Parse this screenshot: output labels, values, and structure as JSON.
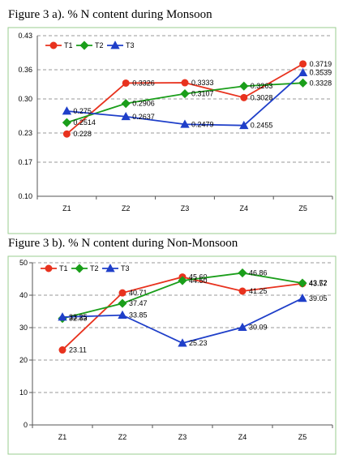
{
  "chart_data": [
    {
      "type": "line",
      "title": "Figure 3 a). % N content during Monsoon",
      "categories": [
        "Z1",
        "Z2",
        "Z3",
        "Z4",
        "Z5"
      ],
      "y_ticks": [
        "0.10",
        "0.17",
        "0.23",
        "0.30",
        "0.36",
        "0.43"
      ],
      "ylim": [
        0.1,
        0.43
      ],
      "grid": true,
      "legend_position": "top-left",
      "series": [
        {
          "name": "T1",
          "color": "#e8321e",
          "marker": "circle",
          "values": [
            0.228,
            0.3326,
            0.3333,
            0.3028,
            0.3719
          ],
          "labels": [
            "0.228",
            "0.3326",
            "0.3333",
            "0.3028",
            "0.3719"
          ]
        },
        {
          "name": "T2",
          "color": "#1a9e1a",
          "marker": "diamond",
          "values": [
            0.2514,
            0.2906,
            0.3107,
            0.3263,
            0.3328
          ],
          "labels": [
            "0.2514",
            "0.2906",
            "0.3107",
            "0.3263",
            "0.3328"
          ]
        },
        {
          "name": "T3",
          "color": "#1f3fc9",
          "marker": "triangle",
          "values": [
            0.275,
            0.2637,
            0.2479,
            0.2455,
            0.3539
          ],
          "labels": [
            "0.275",
            "0.2637",
            "0.2479",
            "0.2455",
            "0.3539"
          ]
        }
      ]
    },
    {
      "type": "line",
      "title": "Figure 3 b). % N content during Non-Monsoon",
      "categories": [
        "Z1",
        "Z2",
        "Z3",
        "Z4",
        "Z5"
      ],
      "y_ticks": [
        "0",
        "10",
        "20",
        "30",
        "40",
        "50"
      ],
      "ylim": [
        0,
        50
      ],
      "grid": true,
      "legend_position": "top-left",
      "series": [
        {
          "name": "T1",
          "color": "#e8321e",
          "marker": "circle",
          "values": [
            23.11,
            40.71,
            45.6,
            41.25,
            43.57
          ],
          "labels": [
            "23.11",
            "40.71",
            "45.60",
            "41.25",
            "43.57"
          ]
        },
        {
          "name": "T2",
          "color": "#1a9e1a",
          "marker": "diamond",
          "values": [
            32.83,
            37.47,
            44.5,
            46.86,
            43.72
          ],
          "labels": [
            "32.83",
            "37.47",
            "44.50",
            "46.86",
            "43.72"
          ]
        },
        {
          "name": "T3",
          "color": "#1f3fc9",
          "marker": "triangle",
          "values": [
            33.25,
            33.85,
            25.23,
            30.09,
            39.05
          ],
          "labels": [
            "33.25",
            "33.85",
            "25.23",
            "30.09",
            "39.05"
          ]
        }
      ]
    }
  ]
}
